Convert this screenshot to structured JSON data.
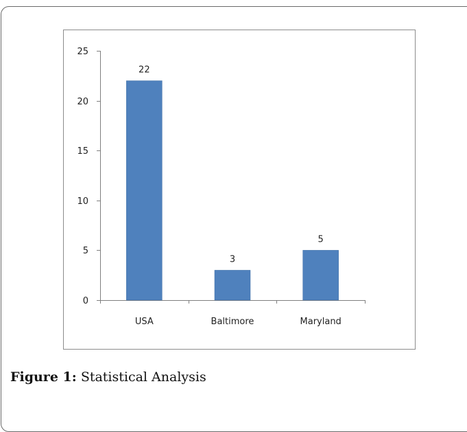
{
  "figure": {
    "label": "Figure 1:",
    "caption": "Statistical Analysis"
  },
  "chart_data": {
    "type": "bar",
    "title": "",
    "xlabel": "",
    "ylabel": "",
    "categories": [
      "USA",
      "Baltimore",
      "Maryland"
    ],
    "values": [
      22,
      3,
      5
    ],
    "data_labels": [
      "22",
      "3",
      "5"
    ],
    "ylim": [
      0,
      25
    ],
    "yticks": [
      0,
      5,
      10,
      15,
      20,
      25
    ],
    "grid": false,
    "legend": "none",
    "colors": {
      "bar": "#4f81bd",
      "bar_edge": "#3f6ea5",
      "axis": "#7f7f7f",
      "plot_border": "#8c8c8c"
    }
  }
}
